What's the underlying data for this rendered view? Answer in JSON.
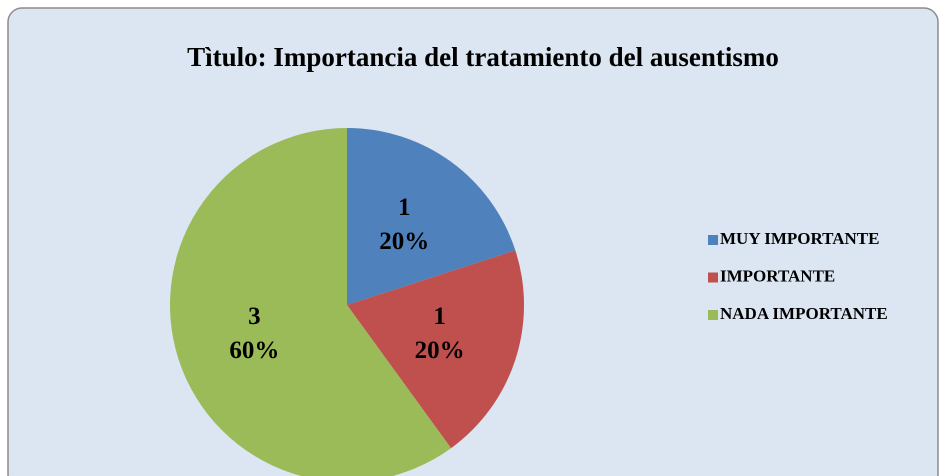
{
  "chart_data": {
    "type": "pie",
    "title": "Tìtulo: Importancia del tratamiento del ausentismo",
    "categories": [
      "MUY IMPORTANTE",
      "IMPORTANTE",
      "NADA IMPORTANTE"
    ],
    "values": [
      1,
      1,
      3
    ],
    "percent_labels": [
      "20%",
      "20%",
      "60%"
    ],
    "colors": [
      "#4f81bd",
      "#c0504d",
      "#9bbb59"
    ],
    "legend": "right"
  }
}
